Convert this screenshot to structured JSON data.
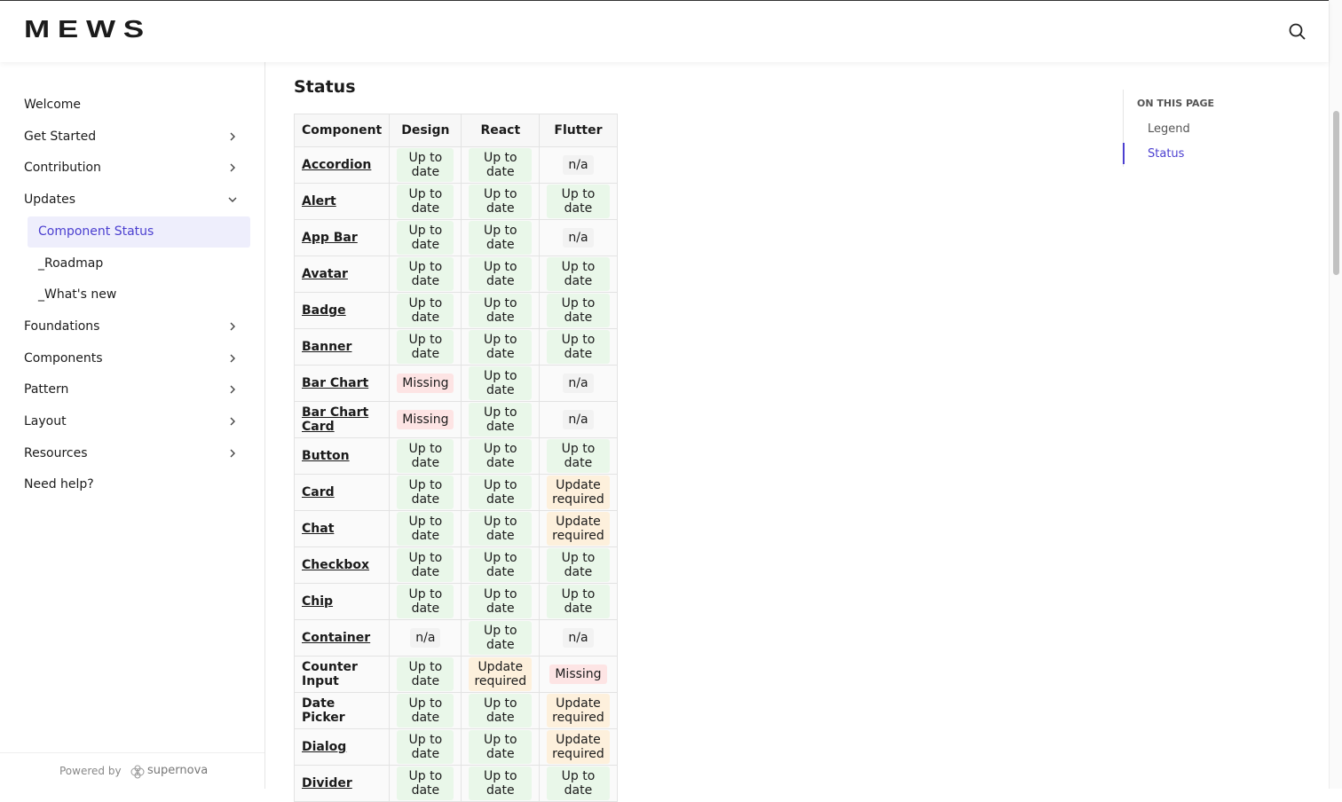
{
  "header": {
    "logo": "MEWS"
  },
  "nav": [
    {
      "label": "Welcome"
    },
    {
      "label": "Get Started",
      "has_children": true
    },
    {
      "label": "Contribution",
      "has_children": true
    },
    {
      "label": "Updates",
      "has_children": true,
      "expanded": true
    },
    {
      "label": "Component Status",
      "child": true,
      "active": true
    },
    {
      "label": "_Roadmap",
      "child": true
    },
    {
      "label": "_What's new",
      "child": true
    },
    {
      "label": "Foundations",
      "has_children": true
    },
    {
      "label": "Components",
      "has_children": true
    },
    {
      "label": "Pattern",
      "has_children": true
    },
    {
      "label": "Layout",
      "has_children": true
    },
    {
      "label": "Resources",
      "has_children": true
    },
    {
      "label": "Need help?"
    }
  ],
  "footer": {
    "powered_by": "Powered by",
    "brand": "supernova"
  },
  "main": {
    "heading": "Status"
  },
  "table": {
    "columns": [
      "Component",
      "Design",
      "React",
      "Flutter"
    ],
    "status_colors": {
      "Up to date": "#e9f7e9",
      "Missing": "#fde4e4",
      "Update required": "#fdf0dc",
      "n/a": "#f2f2f2"
    },
    "rows": [
      {
        "component": "Accordion",
        "link": true,
        "design": "Up to date",
        "react": "Up to date",
        "flutter": "n/a"
      },
      {
        "component": "Alert",
        "link": true,
        "design": "Up to date",
        "react": "Up to date",
        "flutter": "Up to date"
      },
      {
        "component": "App Bar",
        "link": true,
        "design": "Up to date",
        "react": "Up to date",
        "flutter": "n/a"
      },
      {
        "component": "Avatar",
        "link": true,
        "design": "Up to date",
        "react": "Up to date",
        "flutter": "Up to date"
      },
      {
        "component": "Badge",
        "link": true,
        "design": "Up to date",
        "react": "Up to date",
        "flutter": "Up to date"
      },
      {
        "component": "Banner",
        "link": true,
        "design": "Up to date",
        "react": "Up to date",
        "flutter": "Up to date"
      },
      {
        "component": "Bar Chart",
        "link": true,
        "design": "Missing",
        "react": "Up to date",
        "flutter": "n/a"
      },
      {
        "component": "Bar Chart Card",
        "link": true,
        "design": "Missing",
        "react": "Up to date",
        "flutter": "n/a"
      },
      {
        "component": "Button",
        "link": true,
        "design": "Up to date",
        "react": "Up to date",
        "flutter": "Up to date"
      },
      {
        "component": "Card",
        "link": true,
        "design": "Up to date",
        "react": "Up to date",
        "flutter": "Update required"
      },
      {
        "component": "Chat",
        "link": true,
        "design": "Up to date",
        "react": "Up to date",
        "flutter": "Update required"
      },
      {
        "component": "Checkbox",
        "link": true,
        "design": "Up to date",
        "react": "Up to date",
        "flutter": "Up to date"
      },
      {
        "component": "Chip",
        "link": true,
        "design": "Up to date",
        "react": "Up to date",
        "flutter": "Up to date"
      },
      {
        "component": "Container",
        "link": true,
        "design": "n/a",
        "react": "Up to date",
        "flutter": "n/a"
      },
      {
        "component": "Counter Input",
        "link": false,
        "design": "Up to date",
        "react": "Update required",
        "flutter": "Missing"
      },
      {
        "component": "Date Picker",
        "link": false,
        "design": "Up to date",
        "react": "Up to date",
        "flutter": "Update required"
      },
      {
        "component": "Dialog",
        "link": true,
        "design": "Up to date",
        "react": "Up to date",
        "flutter": "Update required"
      },
      {
        "component": "Divider",
        "link": true,
        "design": "Up to date",
        "react": "Up to date",
        "flutter": "Up to date"
      }
    ]
  },
  "toc": {
    "title": "ON THIS PAGE",
    "items": [
      {
        "label": "Legend"
      },
      {
        "label": "Status",
        "active": true
      }
    ]
  }
}
